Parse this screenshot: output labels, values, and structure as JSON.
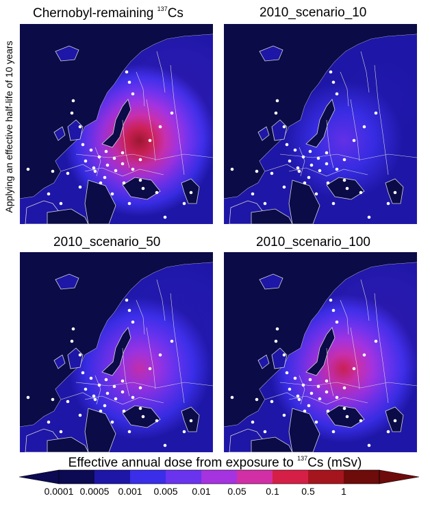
{
  "side_label": "Applying an effective half-life of 10 years",
  "panels": [
    {
      "title": "Chernobyl-remaining ",
      "superscript": "137",
      "suffix": "Cs",
      "hotspot_level": 7,
      "east_level": 4
    },
    {
      "title": "2010_scenario_10",
      "superscript": "",
      "suffix": "",
      "hotspot_level": 3,
      "east_level": 2
    },
    {
      "title": "2010_scenario_50",
      "superscript": "",
      "suffix": "",
      "hotspot_level": 5,
      "east_level": 3
    },
    {
      "title": "2010_scenario_100",
      "superscript": "",
      "suffix": "",
      "hotspot_level": 6,
      "east_level": 4
    }
  ],
  "colorbar": {
    "title_prefix": "Effective annual dose from exposure to ",
    "title_superscript": "137",
    "title_suffix": "Cs (mSv)",
    "colors": [
      "#0c0a52",
      "#1e16a6",
      "#3a2ee8",
      "#6a33ee",
      "#a533e0",
      "#d22fa6",
      "#d61f46",
      "#a5151e",
      "#6e0b0b"
    ],
    "ticks": [
      "0.0001",
      "0.0005",
      "0.001",
      "0.005",
      "0.01",
      "0.05",
      "0.1",
      "0.5",
      "1"
    ]
  },
  "colors": {
    "background": "#ffffff",
    "sea": "#0b0b47",
    "border_lines": "#d8d8d8",
    "city_dots": "#ffffff"
  }
}
